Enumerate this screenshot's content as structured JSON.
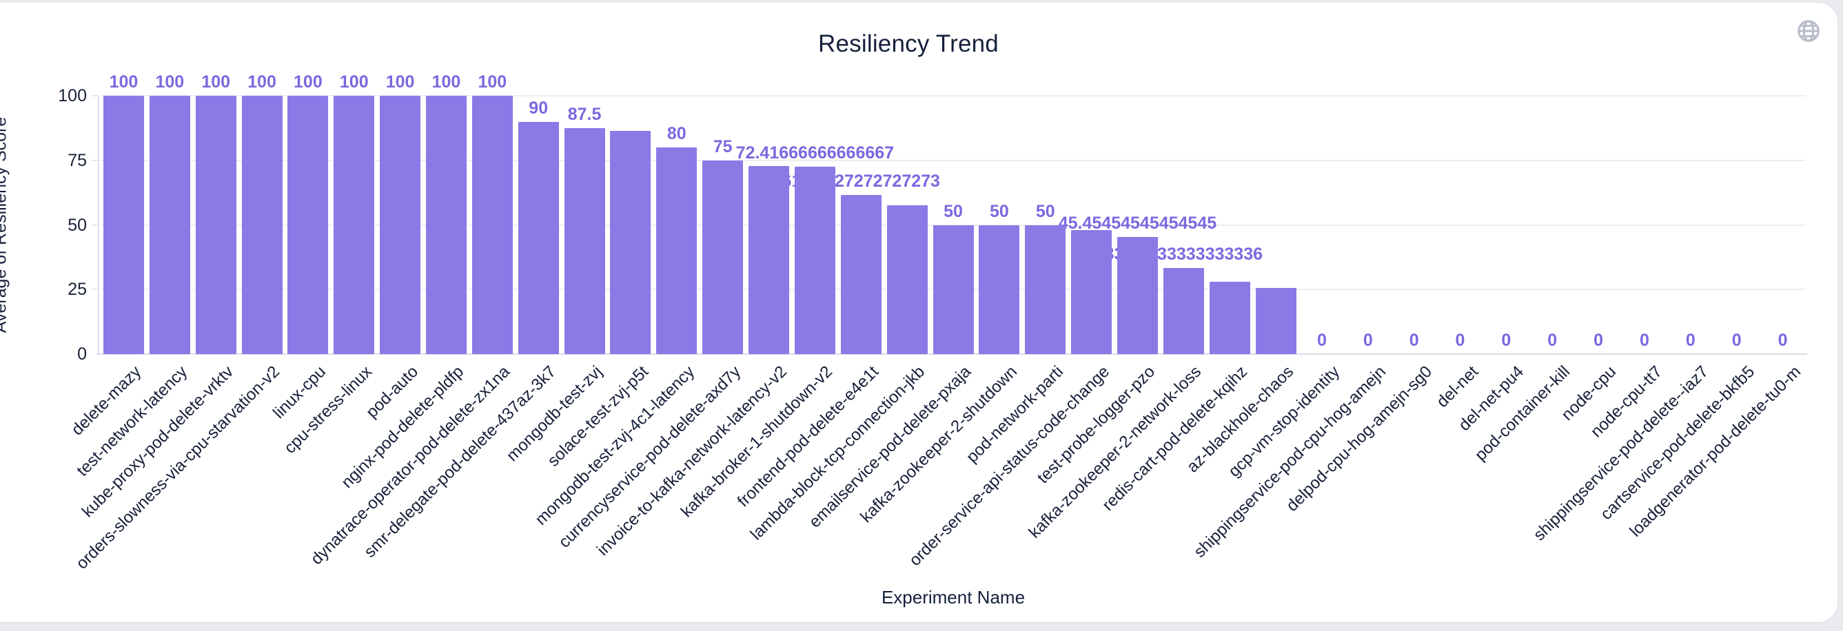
{
  "header": {
    "title": "Resiliency Trend"
  },
  "icons": {
    "globe": "globe-icon"
  },
  "axes": {
    "y_title": "Average of Resiliency Score",
    "x_title": "Experiment Name"
  },
  "chart_data": {
    "type": "bar",
    "title": "Resiliency Trend",
    "xlabel": "Experiment Name",
    "ylabel": "Average of Resiliency Score",
    "ylim": [
      0,
      100
    ],
    "yticks": [
      0,
      25,
      50,
      75,
      100
    ],
    "grid": true,
    "legend": false,
    "bar_color": "#8a7ae6",
    "value_label_color": "#7b68df",
    "axis_text_color": "#17203a",
    "categories": [
      "delete-mazy",
      "test-network-latency",
      "kube-proxy-pod-delete-vrktv",
      "orders-slowness-via-cpu-starvation-v2",
      "linux-cpu",
      "cpu-stress-linux",
      "pod-auto",
      "nginx-pod-delete-pldfp",
      "dynatrace-operator-pod-delete-zx1na",
      "smr-delegate-pod-delete-437az-3k7",
      "mongodb-test-zvj",
      "solace-test-zvj-p5t",
      "mongodb-test-zvj-4c1-latency",
      "currencyservice-pod-delete-axd7y",
      "invoice-to-kafka-network-latency-v2",
      "kafka-broker-1-shutdown-v2",
      "frontend-pod-delete-e4e1t",
      "lambda-block-tcp-connection-jkb",
      "emailservice-pod-delete-pxaja",
      "kafka-zookeeper-2-shutdown",
      "pod-network-parti",
      "order-service-api-status-code-change",
      "test-probe-logger-pzo",
      "kafka-zookeeper-2-network-loss",
      "redis-cart-pod-delete-kqihz",
      "az-blackhole-chaos",
      "gcp-vm-stop-identity",
      "shippingservice-pod-cpu-hog-amejn",
      "delpod-cpu-hog-amejn-sg0",
      "del-net",
      "del-net-pu4",
      "pod-container-kill",
      "node-cpu",
      "node-cpu-tt7",
      "shippingservice-pod-delete--iaz7",
      "cartservice-pod-delete-bkfb5",
      "loadgenerator-pod-delete-tu0-m"
    ],
    "values": [
      100,
      100,
      100,
      100,
      100,
      100,
      100,
      100,
      100,
      90,
      87.5,
      86.4,
      80,
      75,
      72.8,
      72.41666666666667,
      61.72727272727273,
      57.5,
      50,
      50,
      50,
      48,
      45.45454545454545,
      33.33333333333336,
      28,
      25.5,
      0,
      0,
      0,
      0,
      0,
      0,
      0,
      0,
      0,
      0,
      0
    ],
    "value_labels": [
      "100",
      "100",
      "100",
      "100",
      "100",
      "100",
      "100",
      "100",
      "100",
      "90",
      "87.5",
      null,
      "80",
      "75",
      null,
      "72.41666666666667",
      "61.72727272727273",
      null,
      "50",
      "50",
      "50",
      null,
      "45.45454545454545",
      "33.33333333333336",
      null,
      null,
      "0",
      "0",
      "0",
      "0",
      "0",
      "0",
      "0",
      "0",
      "0",
      "0",
      "0"
    ]
  }
}
